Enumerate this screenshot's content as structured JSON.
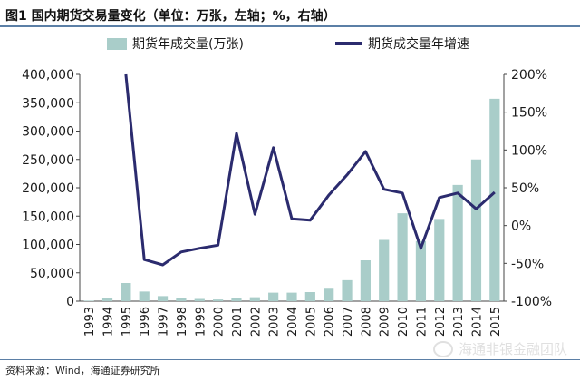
{
  "title": "图1  国内期货交易量变化（单位：万张，左轴；%，右轴）",
  "source": "资料来源：Wind，海通证券研究所",
  "watermark": "海通非银金融团队",
  "colors": {
    "bar": "#a9cdc9",
    "line": "#2b2b6e",
    "rule": "#5b7fa6"
  },
  "chart_data": {
    "type": "bar",
    "categories": [
      "1993",
      "1994",
      "1995",
      "1996",
      "1997",
      "1998",
      "1999",
      "2000",
      "2001",
      "2002",
      "2003",
      "2004",
      "2005",
      "2006",
      "2007",
      "2008",
      "2009",
      "2010",
      "2011",
      "2012",
      "2013",
      "2014",
      "2015"
    ],
    "series": [
      {
        "name": "期货年成交量(万张)",
        "type": "bar",
        "axis": "left",
        "values": [
          1000,
          6000,
          32000,
          17000,
          9000,
          5000,
          4000,
          3000,
          6000,
          7000,
          15000,
          15000,
          16000,
          22000,
          37000,
          72000,
          108000,
          155000,
          106000,
          145000,
          205000,
          250000,
          357000
        ]
      },
      {
        "name": "期货成交量年增速",
        "type": "line",
        "axis": "right",
        "values": [
          null,
          null,
          200,
          -45,
          -52,
          -35,
          -30,
          -26,
          122,
          15,
          103,
          9,
          7,
          40,
          67,
          98,
          48,
          43,
          -30,
          37,
          43,
          22,
          44
        ]
      }
    ],
    "y_left": {
      "min": 0,
      "max": 400000,
      "ticks": [
        "0",
        "50,000",
        "100,000",
        "150,000",
        "200,000",
        "250,000",
        "300,000",
        "350,000",
        "400,000"
      ]
    },
    "y_right": {
      "min": -100,
      "max": 200,
      "ticks": [
        "-100%",
        "-50%",
        "0%",
        "50%",
        "100%",
        "150%",
        "200%"
      ]
    },
    "legend_position": "top"
  }
}
